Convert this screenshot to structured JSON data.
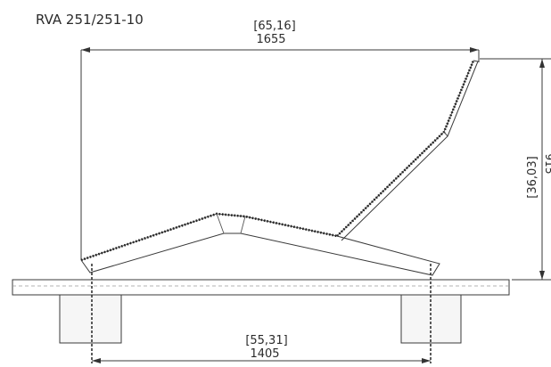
{
  "drawing": {
    "model": "RVA 251/251-10",
    "dimensions": {
      "overall_length": {
        "inches": "[65,16]",
        "mm": "1655"
      },
      "overall_height": {
        "inches": "[36,03]",
        "mm": "915"
      },
      "support_spacing": {
        "inches": "[55,31]",
        "mm": "1405"
      }
    }
  }
}
